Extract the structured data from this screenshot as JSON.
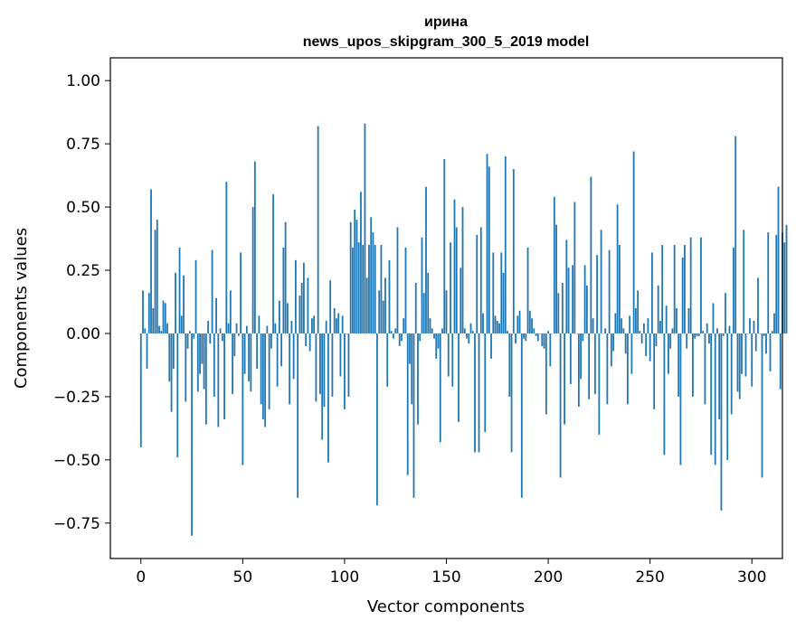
{
  "chart_data": {
    "type": "bar",
    "title": "ирина",
    "subtitle": "news_upos_skipgram_300_5_2019 model",
    "xlabel": "Vector components",
    "ylabel": "Components values",
    "xlim": [
      -15,
      315
    ],
    "ylim": [
      -0.89,
      1.09
    ],
    "xticks": [
      0,
      50,
      100,
      150,
      200,
      250,
      300
    ],
    "xtick_labels": [
      "0",
      "50",
      "100",
      "150",
      "200",
      "250",
      "300"
    ],
    "yticks": [
      -0.75,
      -0.5,
      -0.25,
      0.0,
      0.25,
      0.5,
      0.75,
      1.0
    ],
    "ytick_labels": [
      "−0.75",
      "−0.50",
      "−0.25",
      "0.00",
      "0.25",
      "0.50",
      "0.75",
      "1.00"
    ],
    "bar_color": "#1f77b4",
    "grid": false,
    "values": [
      -0.45,
      0.17,
      0.02,
      -0.14,
      0.16,
      0.57,
      0.1,
      0.41,
      0.45,
      0.03,
      0.01,
      0.13,
      0.12,
      0.04,
      -0.19,
      -0.31,
      -0.14,
      0.24,
      -0.49,
      0.34,
      0.07,
      0.23,
      -0.27,
      -0.06,
      0.01,
      -0.8,
      -0.02,
      0.29,
      -0.23,
      -0.16,
      -0.12,
      -0.22,
      -0.36,
      0.05,
      -0.04,
      0.33,
      -0.25,
      0.14,
      -0.37,
      0.02,
      -0.03,
      -0.34,
      0.6,
      0.04,
      0.17,
      -0.24,
      -0.09,
      0.04,
      -0.01,
      0.32,
      -0.52,
      -0.16,
      0.03,
      -0.19,
      -0.23,
      0.5,
      0.68,
      -0.14,
      0.07,
      -0.28,
      -0.34,
      -0.37,
      0.03,
      -0.3,
      -0.06,
      0.55,
      0.04,
      -0.21,
      0.13,
      -0.13,
      0.34,
      0.44,
      0.12,
      -0.28,
      0.05,
      -0.18,
      0.29,
      -0.65,
      0.15,
      0.2,
      0.28,
      -0.05,
      0.22,
      -0.07,
      0.06,
      0.07,
      -0.27,
      0.82,
      -0.24,
      -0.42,
      -0.29,
      0.05,
      -0.51,
      0.21,
      -0.25,
      0.1,
      0.06,
      0.08,
      -0.17,
      0.07,
      -0.3,
      0.0,
      -0.25,
      0.44,
      0.34,
      0.49,
      0.45,
      0.36,
      0.56,
      0.35,
      0.83,
      0.22,
      0.35,
      0.46,
      0.4,
      0.35,
      -0.68,
      0.17,
      0.35,
      0.13,
      0.22,
      -0.21,
      0.29,
      0.01,
      -0.02,
      0.02,
      0.42,
      -0.05,
      -0.03,
      0.06,
      0.34,
      -0.56,
      -0.12,
      -0.28,
      -0.65,
      0.2,
      -0.36,
      -0.03,
      0.38,
      0.16,
      0.58,
      0.24,
      0.06,
      0.02,
      -0.02,
      -0.1,
      -0.06,
      -0.43,
      0.02,
      0.69,
      0.17,
      -0.17,
      0.36,
      -0.21,
      0.53,
      0.42,
      -0.35,
      0.26,
      0.5,
      0.02,
      -0.02,
      -0.04,
      0.04,
      0.01,
      -0.47,
      0.39,
      -0.47,
      0.42,
      0.08,
      -0.39,
      0.71,
      0.66,
      -0.1,
      0.32,
      0.07,
      0.05,
      0.04,
      0.32,
      0.24,
      0.7,
      0.01,
      -0.25,
      -0.47,
      0.65,
      -0.04,
      0.07,
      0.09,
      -0.65,
      -0.02,
      -0.03,
      0.34,
      0.09,
      0.06,
      0.02,
      -0.01,
      -0.03,
      0.0,
      -0.05,
      -0.06,
      -0.32,
      0.01,
      -0.13,
      0.0,
      0.54,
      0.43,
      0.16,
      -0.57,
      0.2,
      -0.36,
      0.37,
      0.26,
      -0.2,
      0.27,
      0.52,
      0.0,
      -0.29,
      -0.18,
      -0.03,
      0.27,
      0.19,
      -0.26,
      0.62,
      0.06,
      -0.24,
      0.31,
      -0.4,
      0.41,
      0.0,
      0.02,
      -0.28,
      0.33,
      -0.13,
      -0.07,
      0.08,
      0.51,
      0.35,
      0.06,
      0.02,
      -0.08,
      -0.28,
      0.07,
      -0.16,
      0.72,
      0.1,
      0.17,
      0.01,
      -0.04,
      0.04,
      -0.09,
      0.06,
      -0.11,
      0.32,
      -0.3,
      -0.05,
      0.19,
      0.05,
      0.35,
      -0.48,
      0.11,
      -0.16,
      -0.06,
      0.02,
      0.35,
      0.1,
      -0.25,
      -0.52,
      0.3,
      0.35,
      -0.06,
      0.1,
      0.38,
      -0.25,
      -0.02,
      -0.01,
      -0.01,
      0.38,
      0.01,
      -0.28,
      0.04,
      -0.04,
      -0.48,
      0.12,
      -0.52,
      0.02,
      -0.34,
      -0.7,
      -0.01,
      0.16,
      -0.5,
      0.03,
      -0.32,
      0.34,
      0.78,
      -0.23,
      -0.26,
      -0.16,
      0.41,
      -0.17,
      0.0,
      0.06,
      -0.21,
      0.05,
      -0.07,
      0.22,
      0.0,
      -0.57,
      -0.01,
      -0.08,
      0.4,
      -0.15,
      0.01,
      0.08,
      0.39,
      0.58,
      -0.22,
      0.4,
      0.36,
      0.43
    ]
  }
}
